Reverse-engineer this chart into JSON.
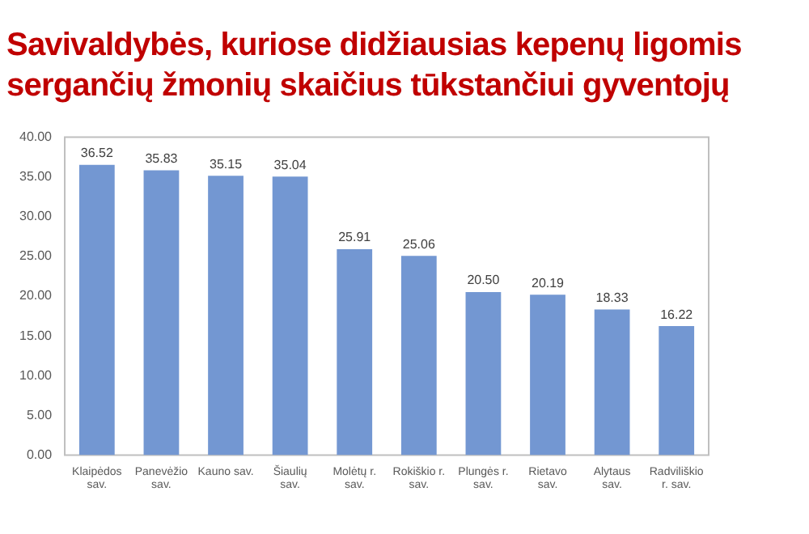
{
  "chart_data": {
    "type": "bar",
    "title": "Savivaldybės, kuriose didžiausias kepenų ligomis sergančių žmonių skaičius tūkstančiui gyventojų",
    "categories": [
      "Klaipėdos sav.",
      "Panevėžio sav.",
      "Kauno sav.",
      "Šiaulių sav.",
      "Molėtų r. sav.",
      "Rokiškio r. sav.",
      "Plungės r. sav.",
      "Rietavo sav.",
      "Alytaus sav.",
      "Radviliškio r. sav."
    ],
    "values": [
      36.52,
      35.83,
      35.15,
      35.04,
      25.91,
      25.06,
      20.5,
      20.19,
      18.33,
      16.22
    ],
    "value_labels": [
      "36.52",
      "35.83",
      "35.15",
      "35.04",
      "25.91",
      "25.06",
      "20.50",
      "20.19",
      "18.33",
      "16.22"
    ],
    "color": "#7397d2",
    "ylim": [
      0,
      40
    ],
    "yticks": [
      {
        "value": 0,
        "label": "0.00"
      },
      {
        "value": 5,
        "label": "5.00"
      },
      {
        "value": 10,
        "label": "10.00"
      },
      {
        "value": 15,
        "label": "15.00"
      },
      {
        "value": 20,
        "label": "20.00"
      },
      {
        "value": 25,
        "label": "25.00"
      },
      {
        "value": 30,
        "label": "30.00"
      },
      {
        "value": 35,
        "label": "35.00"
      },
      {
        "value": 40,
        "label": "40.00"
      }
    ],
    "grid": false
  }
}
